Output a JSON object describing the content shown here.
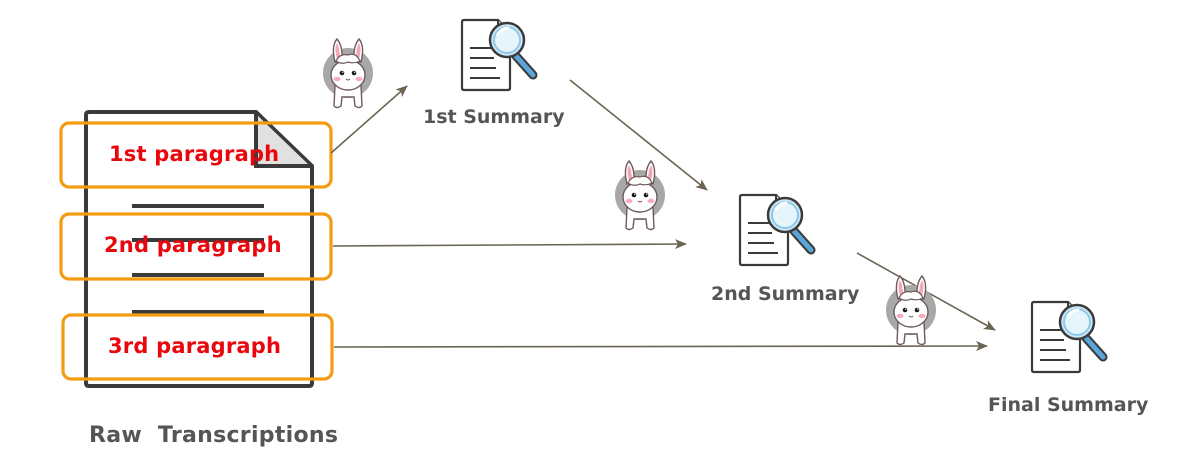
{
  "source": {
    "caption": "Raw  Transcriptions",
    "paragraphs": [
      {
        "label": "1st paragraph"
      },
      {
        "label": "2nd paragraph"
      },
      {
        "label": "3rd paragraph"
      }
    ]
  },
  "summaries": [
    {
      "label": "1st Summary",
      "icon": "document-magnifier-icon"
    },
    {
      "label": "2nd Summary",
      "icon": "document-magnifier-icon"
    },
    {
      "label": "Final Summary",
      "icon": "document-magnifier-icon"
    }
  ],
  "agent_icon": "llama-icon",
  "colors": {
    "paragraph_box": "#f39c12",
    "paragraph_text": "#e8070c",
    "arrow": "#6b6552",
    "caption": "#555555",
    "document_outline": "#3a3a3a",
    "magnifier_lens": "#cde8f7",
    "magnifier_handle": "#5aa6d8"
  }
}
